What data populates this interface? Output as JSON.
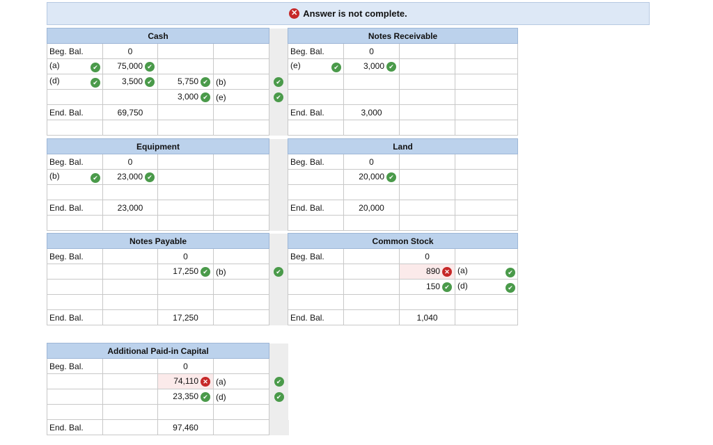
{
  "banner": {
    "text": "Answer is not complete."
  },
  "labels": {
    "beg": "Beg. Bal.",
    "end": "End. Bal.",
    "a": "(a)",
    "b": "(b)",
    "d": "(d)",
    "e": "(e)"
  },
  "cash": {
    "title": "Cash",
    "beg": "0",
    "a_debit": "75,000",
    "d_debit": "3,500",
    "b_credit": "5,750",
    "e_credit": "3,000",
    "end": "69,750"
  },
  "notes_receivable": {
    "title": "Notes Receivable",
    "beg": "0",
    "e_debit": "3,000",
    "end": "3,000"
  },
  "equipment": {
    "title": "Equipment",
    "beg": "0",
    "b_debit": "23,000",
    "end": "23,000"
  },
  "land": {
    "title": "Land",
    "beg": "0",
    "debit": "20,000",
    "end": "20,000"
  },
  "notes_payable": {
    "title": "Notes Payable",
    "beg": "0",
    "b_credit": "17,250",
    "end": "17,250"
  },
  "common_stock": {
    "title": "Common Stock",
    "beg": "0",
    "a_credit": "890",
    "d_credit": "150",
    "end": "1,040"
  },
  "apic": {
    "title": "Additional Paid-in Capital",
    "beg": "0",
    "a_credit": "74,110",
    "d_credit": "23,350",
    "end": "97,460"
  },
  "icons": {
    "check": "check-circle-icon",
    "error": "x-circle-icon"
  },
  "colors": {
    "header": "#bcd2ec",
    "banner": "#dde8f6",
    "check": "#4a9a4a",
    "error": "#c62828"
  }
}
